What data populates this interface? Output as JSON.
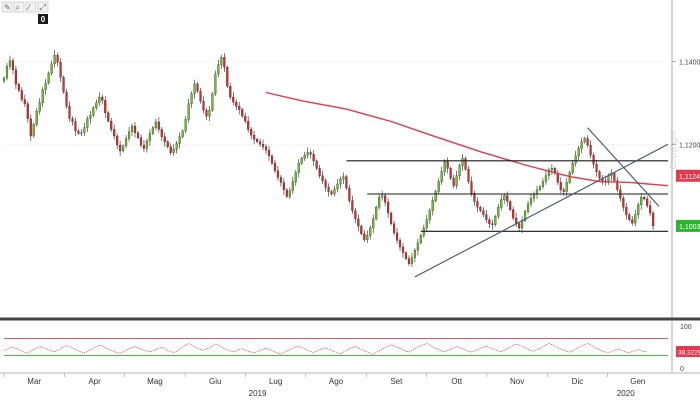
{
  "toolbar": {
    "icons": [
      "pencil-icon",
      "magnifier-icon",
      "edit-icon",
      "resize-icon"
    ],
    "badge_label": "0"
  },
  "chart_data": {
    "type": "candlestick",
    "title": "",
    "watermark": "Copyright",
    "price_axis": {
      "ticks": [
        {
          "value": 1.14,
          "label": "1,1400"
        },
        {
          "value": 1.12,
          "label": "1,1200"
        }
      ],
      "ylim": [
        1.08,
        1.15
      ]
    },
    "x_axis": {
      "months": [
        "Mar",
        "Apr",
        "Mag",
        "Giu",
        "Lug",
        "Ago",
        "Set",
        "Ott",
        "Nov",
        "Dic",
        "Gen"
      ],
      "years": [
        "2019",
        "2020"
      ],
      "xlim": [
        0,
        223
      ]
    },
    "price_labels": [
      {
        "value": 1.1124,
        "label": "1,1124",
        "color": "#e03a4f"
      },
      {
        "value": 1.1003,
        "label": "1,1003",
        "color": "#2cb52c"
      }
    ],
    "moving_average": {
      "color": "#e03a4f",
      "points": [
        [
          88,
          1.1325
        ],
        [
          100,
          1.1305
        ],
        [
          115,
          1.1285
        ],
        [
          130,
          1.1255
        ],
        [
          145,
          1.1218
        ],
        [
          160,
          1.1182
        ],
        [
          175,
          1.115
        ],
        [
          190,
          1.1122
        ],
        [
          200,
          1.111
        ],
        [
          210,
          1.1108
        ],
        [
          223,
          1.11
        ]
      ]
    },
    "horizontal_levels": [
      {
        "value": 1.116,
        "x_start": 115,
        "x_end": 223
      },
      {
        "value": 1.108,
        "x_start": 122,
        "x_end": 223
      },
      {
        "value": 1.099,
        "x_start": 140,
        "x_end": 223
      }
    ],
    "trendlines": [
      {
        "from": [
          138,
          1.088
        ],
        "to": [
          223,
          1.12
        ]
      },
      {
        "from": [
          196,
          1.124
        ],
        "to": [
          220,
          1.105
        ]
      }
    ],
    "candles": {
      "x_start": 0,
      "step": 1,
      "closes": [
        1.136,
        1.1388,
        1.1402,
        1.138,
        1.1345,
        1.133,
        1.1308,
        1.1298,
        1.1262,
        1.122,
        1.1248,
        1.128,
        1.13,
        1.1332,
        1.1348,
        1.1372,
        1.1394,
        1.1415,
        1.1398,
        1.1362,
        1.1326,
        1.1292,
        1.1262,
        1.1255,
        1.1232,
        1.1226,
        1.1228,
        1.124,
        1.1262,
        1.127,
        1.1288,
        1.13,
        1.1314,
        1.1306,
        1.1276,
        1.1256,
        1.1236,
        1.122,
        1.1198,
        1.1184,
        1.1196,
        1.1214,
        1.123,
        1.1244,
        1.1228,
        1.1216,
        1.1198,
        1.119,
        1.1208,
        1.1226,
        1.124,
        1.1254,
        1.1236,
        1.1218,
        1.1206,
        1.1194,
        1.118,
        1.1188,
        1.1202,
        1.1218,
        1.1232,
        1.126,
        1.1298,
        1.1322,
        1.1346,
        1.1328,
        1.1304,
        1.1282,
        1.1268,
        1.1282,
        1.1322,
        1.137,
        1.1392,
        1.141,
        1.1386,
        1.134,
        1.1314,
        1.1302,
        1.1292,
        1.1284,
        1.1268,
        1.1256,
        1.1236,
        1.1222,
        1.1212,
        1.1206,
        1.12,
        1.1194,
        1.1186,
        1.1172,
        1.1154,
        1.1136,
        1.112,
        1.1108,
        1.109,
        1.1074,
        1.1088,
        1.111,
        1.1132,
        1.1154,
        1.1166,
        1.1174,
        1.118,
        1.1176,
        1.116,
        1.1142,
        1.1124,
        1.1112,
        1.1096,
        1.1086,
        1.108,
        1.1092,
        1.1104,
        1.1116,
        1.1122,
        1.1094,
        1.1064,
        1.104,
        1.102,
        1.1002,
        1.0984,
        1.097,
        1.098,
        1.0998,
        1.102,
        1.1048,
        1.1072,
        1.1076,
        1.106,
        1.1034,
        1.1008,
        1.0986,
        1.0968,
        1.0952,
        1.0938,
        1.0924,
        1.0912,
        1.0926,
        1.0944,
        1.0962,
        1.098,
        1.0998,
        1.1018,
        1.104,
        1.1064,
        1.1086,
        1.111,
        1.1134,
        1.1158,
        1.1142,
        1.1118,
        1.11,
        1.1124,
        1.1148,
        1.1166,
        1.114,
        1.111,
        1.1082,
        1.1062,
        1.1048,
        1.104,
        1.103,
        1.1018,
        1.1008,
        1.1006,
        1.1026,
        1.1048,
        1.1066,
        1.1076,
        1.1062,
        1.1042,
        1.1022,
        1.1008,
        1.0998,
        1.1016,
        1.1038,
        1.1056,
        1.107,
        1.108,
        1.109,
        1.1098,
        1.111,
        1.1124,
        1.1138,
        1.1142,
        1.113,
        1.1108,
        1.109,
        1.1086,
        1.1108,
        1.1132,
        1.1154,
        1.1172,
        1.119,
        1.1206,
        1.1214,
        1.1198,
        1.1174,
        1.1152,
        1.1134,
        1.1118,
        1.1108,
        1.1112,
        1.1124,
        1.113,
        1.1112,
        1.109,
        1.107,
        1.1048,
        1.103,
        1.1018,
        1.101,
        1.103,
        1.1054,
        1.1072,
        1.1068,
        1.1052,
        1.1034,
        1.1003
      ]
    },
    "oscillator": {
      "ticks": [
        {
          "value": 100,
          "label": "100"
        },
        {
          "value": 0,
          "label": "0"
        }
      ],
      "ylim": [
        0,
        100
      ],
      "upper_level": 70,
      "lower_level": 30,
      "value_label": "38,3229",
      "series": [
        42,
        45,
        48,
        50,
        47,
        44,
        40,
        37,
        35,
        40,
        44,
        48,
        51,
        49,
        46,
        43,
        41,
        39,
        42,
        46,
        50,
        53,
        52,
        48,
        44,
        41,
        38,
        36,
        39,
        43,
        47,
        51,
        54,
        52,
        49,
        45,
        42,
        39,
        37,
        35,
        38,
        42,
        46,
        49,
        51,
        48,
        45,
        43,
        40,
        38,
        41,
        44,
        47,
        49,
        46,
        42,
        39,
        37,
        40,
        45,
        50,
        55,
        58,
        55,
        51,
        47,
        44,
        42,
        45,
        49,
        53,
        56,
        54,
        50,
        46,
        43,
        40,
        38,
        41,
        44,
        46,
        43,
        40,
        38,
        36,
        39,
        42,
        45,
        47,
        44,
        41,
        38,
        35,
        33,
        36,
        40,
        44,
        47,
        50,
        52,
        49,
        46,
        42,
        39,
        37,
        40,
        43,
        46,
        48,
        45,
        42,
        39,
        36,
        34,
        38,
        42,
        46,
        49,
        51,
        48,
        44,
        41,
        38,
        35,
        33,
        37,
        41,
        45,
        49,
        52,
        55,
        53,
        50,
        46,
        43,
        40,
        38,
        42,
        46,
        50,
        53,
        56,
        58,
        55,
        51,
        47,
        44,
        41,
        39,
        42,
        45,
        48,
        51,
        49,
        46,
        43,
        40,
        38,
        41,
        44,
        47,
        50,
        52,
        49,
        46,
        43,
        41,
        39,
        42,
        46,
        50,
        54,
        57,
        55,
        52,
        48,
        45,
        42,
        40,
        43,
        47,
        51,
        55,
        58,
        56,
        52,
        48,
        45,
        42,
        40,
        38,
        41,
        45,
        49,
        53,
        56,
        58,
        55,
        51,
        47,
        44,
        41,
        38,
        36,
        39,
        42,
        45,
        43,
        40,
        38,
        36,
        39,
        42,
        44,
        41,
        39,
        38
      ]
    }
  }
}
